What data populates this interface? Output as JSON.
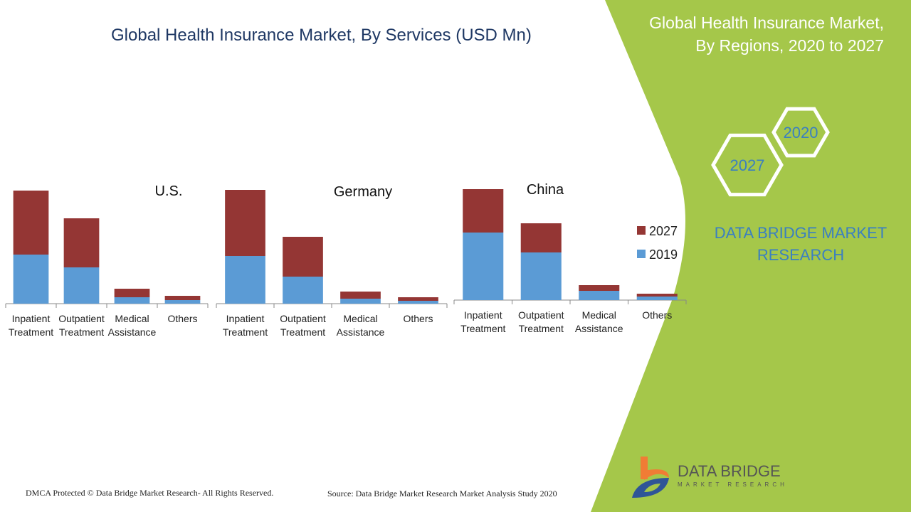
{
  "title": "Global Health Insurance Market, By Services (USD Mn)",
  "right_title_line1": "Global Health Insurance Market,",
  "right_title_line2": "By Regions, 2020 to 2027",
  "hex_labels": [
    "2020",
    "2027"
  ],
  "brand_line1": "DATA BRIDGE MARKET",
  "brand_line2": "RESEARCH",
  "footer_left": "DMCA Protected © Data Bridge Market Research- All Rights Reserved.",
  "footer_source": "Source: Data Bridge Market Research Market Analysis Study 2020",
  "logo_text": "DATA BRIDGE",
  "logo_subtext": "MARKET RESEARCH",
  "colors": {
    "s2019": "#5b9bd5",
    "s2027": "#943634",
    "green": "#a5c74a",
    "title": "#1f3864"
  },
  "chart_data": [
    {
      "type": "bar",
      "stacked": true,
      "title": "U.S.",
      "categories": [
        [
          "Inpatient",
          "Treatment"
        ],
        [
          "Outpatient",
          "Treatment"
        ],
        [
          "Medical",
          "Assistance"
        ],
        [
          "Others"
        ]
      ],
      "series": [
        {
          "name": "2019",
          "values": [
            69,
            51,
            9,
            5
          ]
        },
        {
          "name": "2027",
          "values": [
            90,
            69,
            12,
            6
          ]
        }
      ]
    },
    {
      "type": "bar",
      "stacked": true,
      "title": "Germany",
      "categories": [
        [
          "Inpatient",
          "Treatment"
        ],
        [
          "Outpatient",
          "Treatment"
        ],
        [
          "Medical",
          "Assistance"
        ],
        [
          "Others"
        ]
      ],
      "series": [
        {
          "name": "2019",
          "values": [
            67,
            38,
            7,
            4
          ]
        },
        {
          "name": "2027",
          "values": [
            93,
            56,
            10,
            5
          ]
        }
      ]
    },
    {
      "type": "bar",
      "stacked": true,
      "title": "China",
      "categories": [
        [
          "Inpatient",
          "Treatment"
        ],
        [
          "Outpatient",
          "Treatment"
        ],
        [
          "Medical",
          "Assistance"
        ],
        [
          "Others"
        ]
      ],
      "series": [
        {
          "name": "2019",
          "values": [
            95,
            67,
            13,
            5
          ]
        },
        {
          "name": "2027",
          "values": [
            61,
            41,
            8,
            4
          ]
        }
      ],
      "legend": {
        "position": "right",
        "entries": [
          "2027",
          "2019"
        ]
      }
    }
  ]
}
